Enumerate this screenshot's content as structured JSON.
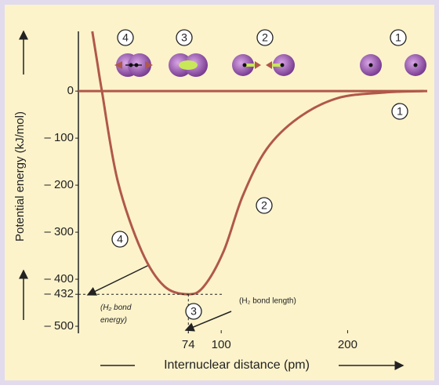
{
  "chart_data": {
    "type": "line",
    "y_label": "Potential energy (kJ/mol)",
    "x_label": "Internuclear distance (pm)",
    "xlim": [
      -13,
      263
    ],
    "ylim": [
      -515,
      127
    ],
    "xticks": [
      74,
      100,
      200
    ],
    "yticks": [
      0,
      {
        "value": -100,
        "label": "– 100"
      },
      {
        "value": -200,
        "label": "– 200"
      },
      {
        "value": -300,
        "label": "– 300"
      },
      {
        "value": -400,
        "label": "– 400"
      },
      {
        "value": -432,
        "label": "– 432"
      },
      {
        "value": -500,
        "label": "– 500"
      }
    ],
    "reference_line": 0,
    "series": [
      {
        "name": "H2",
        "color": "#b0584a",
        "x": [
          -2,
          2,
          5.6,
          18,
          37,
          55,
          74,
          86.3,
          102,
          117,
          136,
          161,
          192,
          229,
          260
        ],
        "values": [
          127,
          60,
          0,
          -190,
          -340,
          -415,
          -432,
          -415,
          -340,
          -223,
          -123,
          -57,
          -15,
          -3,
          0
        ]
      }
    ],
    "bond_energy_label": [
      "(H₂ bond",
      "energy)"
    ],
    "bond_length_label": "(H₂ bond length)",
    "annotations": [
      "4",
      "3",
      "2",
      "1",
      "1",
      "2",
      "3",
      "4"
    ]
  }
}
